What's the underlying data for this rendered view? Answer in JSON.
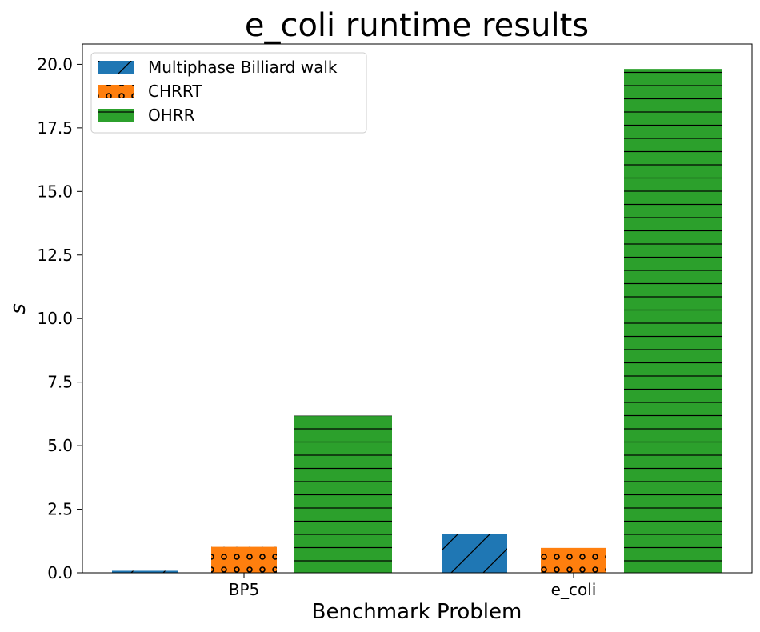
{
  "chart_data": {
    "type": "bar",
    "title": "e_coli runtime results",
    "xlabel": "Benchmark Problem",
    "ylabel": "s",
    "categories": [
      "BP5",
      "e_coli"
    ],
    "ylim": [
      0,
      20.8
    ],
    "yticks": [
      "0.0",
      "2.5",
      "5.0",
      "7.5",
      "10.0",
      "12.5",
      "15.0",
      "17.5",
      "20.0"
    ],
    "ytick_values": [
      0,
      2.5,
      5,
      7.5,
      10,
      12.5,
      15,
      17.5,
      20
    ],
    "grid": false,
    "legend_position": "top-left",
    "series": [
      {
        "name": "Multiphase Billiard walk",
        "values": [
          0.08,
          1.52
        ],
        "color": "#1f77b4",
        "hatch": "diagonal"
      },
      {
        "name": "CHRRT",
        "values": [
          1.02,
          0.98
        ],
        "color": "#ff7f0e",
        "hatch": "circles"
      },
      {
        "name": "OHRR",
        "values": [
          6.18,
          19.82
        ],
        "color": "#2ca02c",
        "hatch": "horizontal"
      }
    ]
  }
}
